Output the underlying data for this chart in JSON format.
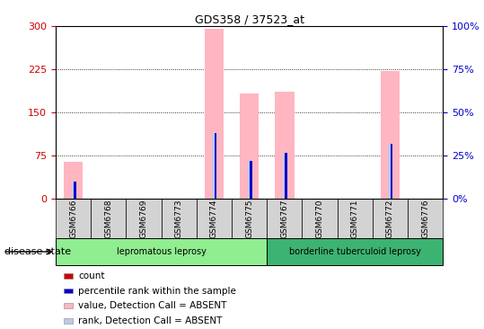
{
  "title": "GDS358 / 37523_at",
  "samples": [
    "GSM6766",
    "GSM6768",
    "GSM6769",
    "GSM6773",
    "GSM6774",
    "GSM6775",
    "GSM6767",
    "GSM6770",
    "GSM6771",
    "GSM6772",
    "GSM6776"
  ],
  "value_absent": [
    65,
    0,
    0,
    0,
    295,
    183,
    187,
    0,
    0,
    222,
    0
  ],
  "rank_absent_pct": [
    10,
    0,
    0,
    0,
    38,
    22,
    27,
    0,
    0,
    32,
    0
  ],
  "count_vals": [
    1,
    0,
    0,
    0,
    0,
    0,
    0,
    0,
    0,
    0,
    0
  ],
  "pct_rank_vals": [
    10,
    0,
    0,
    0,
    38,
    22,
    27,
    0,
    0,
    32,
    0
  ],
  "groups": [
    {
      "label": "lepromatous leprosy",
      "start": 0,
      "end": 6,
      "color": "#90EE90"
    },
    {
      "label": "borderline tuberculoid leprosy",
      "start": 6,
      "end": 11,
      "color": "#3CB371"
    }
  ],
  "ylim_left": [
    0,
    300
  ],
  "ylim_right": [
    0,
    100
  ],
  "yticks_left": [
    0,
    75,
    150,
    225,
    300
  ],
  "yticks_right": [
    0,
    25,
    50,
    75,
    100
  ],
  "bar_color_absent_value": "#FFB6C1",
  "bar_color_absent_rank": "#C0C8E8",
  "bar_color_count": "#CC0000",
  "bar_color_percentile": "#0000CC",
  "background_color": "#FFFFFF",
  "plot_bg_color": "#FFFFFF",
  "tick_label_color_left": "#CC0000",
  "tick_label_color_right": "#0000CC",
  "sample_box_color": "#D3D3D3",
  "legend_items": [
    {
      "label": "count",
      "color": "#CC0000"
    },
    {
      "label": "percentile rank within the sample",
      "color": "#0000CC"
    },
    {
      "label": "value, Detection Call = ABSENT",
      "color": "#FFB6C1"
    },
    {
      "label": "rank, Detection Call = ABSENT",
      "color": "#C0C8E8"
    }
  ],
  "disease_state_label": "disease state"
}
